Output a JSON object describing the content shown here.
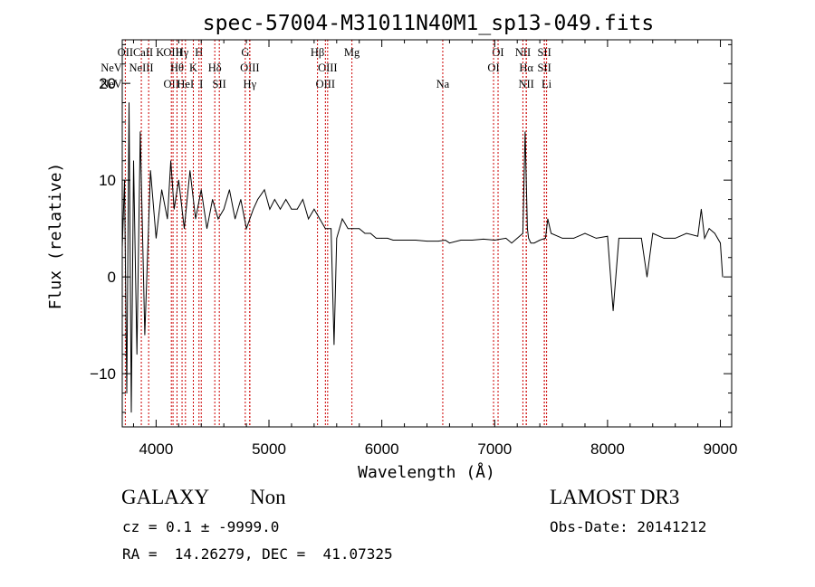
{
  "colors": {
    "spectrum": "#000000",
    "marker": "#cc0000",
    "axis": "#000000",
    "background": "#ffffff"
  },
  "chart_data": {
    "type": "line",
    "title": "spec-57004-M31011N40M1_sp13-049.fits",
    "xlabel": "Wavelength (Å)",
    "ylabel": "Flux (relative)",
    "xlim": [
      3700,
      9100
    ],
    "ylim": [
      -15.5,
      24.5
    ],
    "xticks": [
      4000,
      5000,
      6000,
      7000,
      8000,
      9000
    ],
    "yticks": [
      -10,
      0,
      10,
      20
    ],
    "series": [
      {
        "name": "spectrum",
        "x": [
          3700,
          3720,
          3740,
          3760,
          3780,
          3800,
          3830,
          3860,
          3900,
          3950,
          4000,
          4050,
          4100,
          4130,
          4160,
          4200,
          4250,
          4300,
          4350,
          4400,
          4450,
          4500,
          4550,
          4600,
          4650,
          4700,
          4750,
          4800,
          4861,
          4900,
          4960,
          5007,
          5050,
          5100,
          5150,
          5200,
          5250,
          5300,
          5350,
          5400,
          5450,
          5500,
          5550,
          5577,
          5600,
          5650,
          5700,
          5750,
          5800,
          5850,
          5900,
          5950,
          6000,
          6050,
          6100,
          6200,
          6300,
          6400,
          6500,
          6563,
          6600,
          6700,
          6800,
          6900,
          7000,
          7100,
          7150,
          7200,
          7250,
          7270,
          7290,
          7300,
          7320,
          7350,
          7400,
          7450,
          7470,
          7500,
          7600,
          7700,
          7800,
          7900,
          8000,
          8050,
          8100,
          8200,
          8300,
          8350,
          8400,
          8500,
          8600,
          8700,
          8800,
          8830,
          8860,
          8900,
          8950,
          9000,
          9020
        ],
        "values": [
          3,
          10,
          -12,
          18,
          -14,
          12,
          -8,
          15,
          -6,
          11,
          4,
          9,
          6,
          12,
          7,
          10,
          5,
          11,
          6,
          9,
          5,
          8,
          6,
          7,
          9,
          6,
          8,
          5,
          7,
          8,
          9,
          7,
          8,
          7,
          8,
          7,
          7,
          8,
          6,
          7,
          6,
          5,
          5,
          -7,
          4,
          6,
          5,
          5,
          5,
          4.5,
          4.5,
          4,
          4,
          4,
          3.8,
          3.8,
          3.8,
          3.7,
          3.7,
          3.8,
          3.5,
          3.8,
          3.8,
          3.9,
          3.8,
          4,
          3.5,
          4,
          4.5,
          15,
          5,
          4,
          3.5,
          3.5,
          3.8,
          4,
          6,
          4.5,
          4,
          4,
          4.5,
          4,
          4.2,
          -3.5,
          4,
          4,
          4,
          0,
          4.5,
          4,
          4,
          4.5,
          4.2,
          7,
          4,
          5,
          4.5,
          3.5,
          0
        ]
      }
    ],
    "lines": [
      {
        "name": "NeV",
        "wave": 3346,
        "row": 1
      },
      {
        "name": "NeV",
        "wave": 3426,
        "row": 2
      },
      {
        "name": "OII",
        "wave": 3727,
        "row": 0
      },
      {
        "name": "NeIII",
        "wave": 3869,
        "row": 1
      },
      {
        "name": "CaII K",
        "wave": 3934,
        "row": 0
      },
      {
        "name": "OII",
        "wave": 4135,
        "row": 2
      },
      {
        "name": "OIII",
        "wave": 4150,
        "row": 0
      },
      {
        "name": "Hθ",
        "wave": 4185,
        "row": 1
      },
      {
        "name": "Hγ",
        "wave": 4230,
        "row": 0
      },
      {
        "name": "HeI",
        "wave": 4260,
        "row": 2
      },
      {
        "name": "K",
        "wave": 4330,
        "row": 1
      },
      {
        "name": "H",
        "wave": 4380,
        "row": 0
      },
      {
        "name": "I",
        "wave": 4400,
        "row": 2
      },
      {
        "name": "Hδ",
        "wave": 4520,
        "row": 1
      },
      {
        "name": "SII",
        "wave": 4560,
        "row": 2
      },
      {
        "name": "G",
        "wave": 4790,
        "row": 0
      },
      {
        "name": "OIII",
        "wave": 4830,
        "row": 1
      },
      {
        "name": "Hγ",
        "wave": 4830,
        "row": 2
      },
      {
        "name": "Hβ",
        "wave": 5430,
        "row": 0
      },
      {
        "name": "OIII",
        "wave": 5520,
        "row": 1
      },
      {
        "name": "OIII",
        "wave": 5500,
        "row": 2
      },
      {
        "name": "Mg",
        "wave": 5735,
        "row": 0
      },
      {
        "name": "Na",
        "wave": 6540,
        "row": 2
      },
      {
        "name": "OI",
        "wave": 7030,
        "row": 0
      },
      {
        "name": "OI",
        "wave": 6990,
        "row": 1
      },
      {
        "name": "NII",
        "wave": 7250,
        "row": 0
      },
      {
        "name": "Hα",
        "wave": 7280,
        "row": 1
      },
      {
        "name": "NII",
        "wave": 7280,
        "row": 2
      },
      {
        "name": "SII",
        "wave": 7440,
        "row": 0
      },
      {
        "name": "SII",
        "wave": 7440,
        "row": 1
      },
      {
        "name": "Li",
        "wave": 7460,
        "row": 2
      }
    ]
  },
  "footer": {
    "class_label": "GALAXY",
    "subclass": "Non",
    "survey": "LAMOST DR3",
    "cz_text": "cz = 0.1 ± -9999.0",
    "obs_date": "Obs-Date: 20141212",
    "radec": "RA =  14.26279, DEC =  41.07325"
  }
}
